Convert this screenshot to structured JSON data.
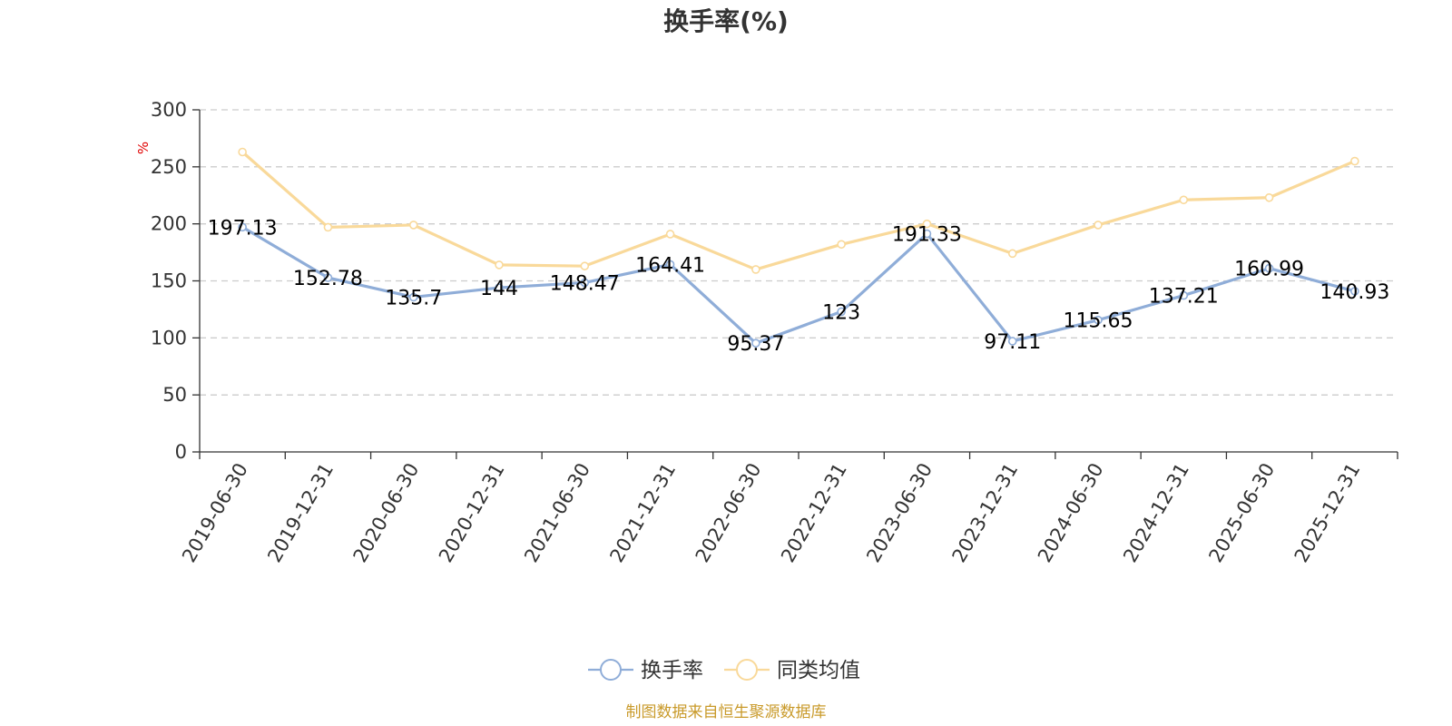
{
  "chart_data": {
    "type": "line",
    "title": "换手率(%)",
    "ylabel": "%",
    "ylim": [
      0,
      300
    ],
    "yticks": [
      0,
      50,
      100,
      150,
      200,
      250,
      300
    ],
    "grid": true,
    "legend_position": "bottom",
    "categories": [
      "2019-06-30",
      "2019-12-31",
      "2020-06-30",
      "2020-12-31",
      "2021-06-30",
      "2021-12-31",
      "2022-06-30",
      "2022-12-31",
      "2023-06-30",
      "2023-12-31",
      "2024-06-30",
      "2024-12-31",
      "2025-06-30",
      "2025-12-31"
    ],
    "series": [
      {
        "name": "换手率",
        "color": "#8fadd8",
        "show_labels": true,
        "values": [
          197.13,
          152.78,
          135.7,
          144,
          148.47,
          164.41,
          95.37,
          123,
          191.33,
          97.11,
          115.65,
          137.21,
          160.99,
          140.93
        ]
      },
      {
        "name": "同类均值",
        "color": "#f9d99a",
        "show_labels": false,
        "values": [
          263,
          197,
          199,
          164,
          163,
          191,
          160,
          182,
          200,
          174,
          199,
          221,
          223,
          255
        ]
      }
    ],
    "source": "制图数据来自恒生聚源数据库"
  }
}
